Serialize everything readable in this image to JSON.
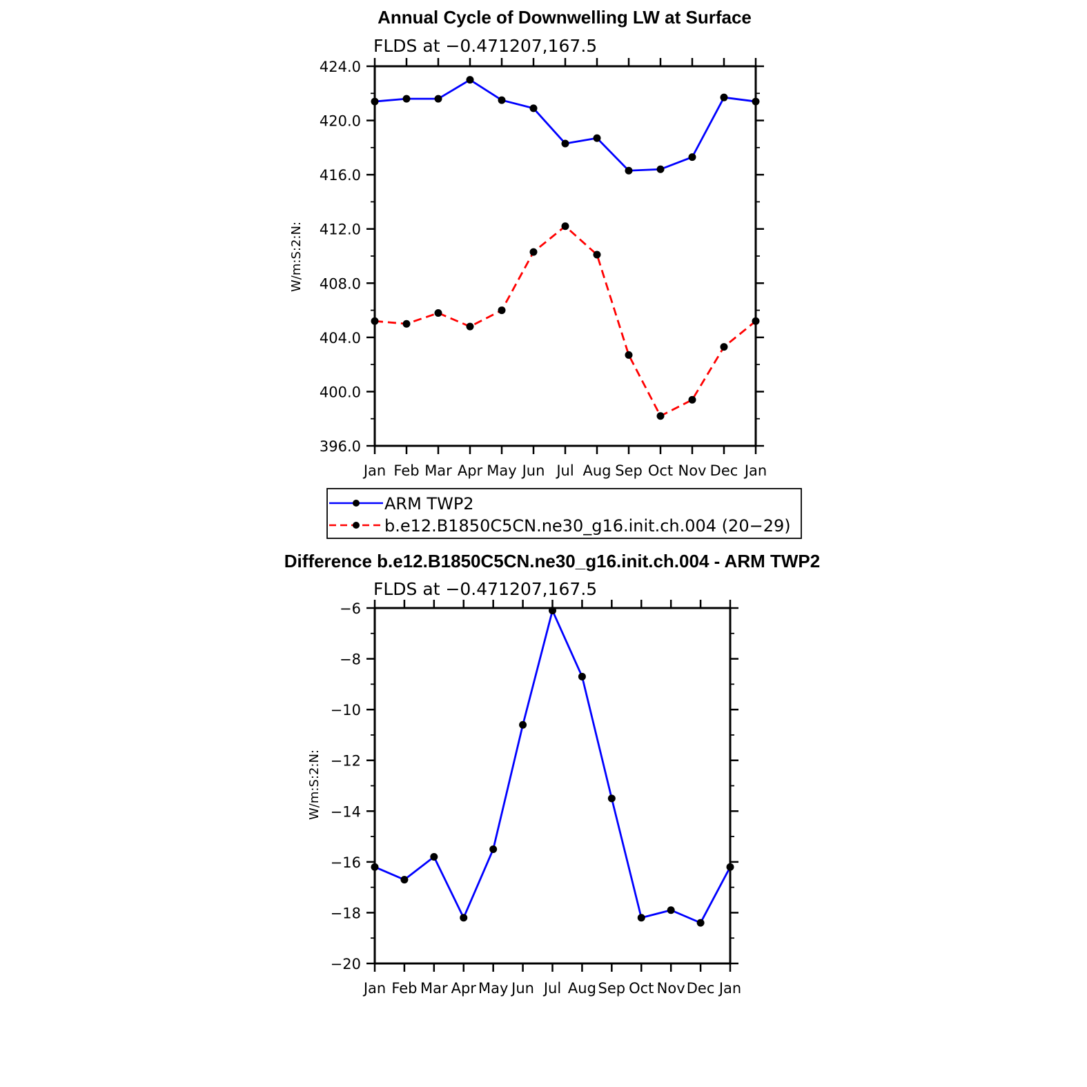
{
  "chart_data": [
    {
      "type": "line",
      "title": "Annual Cycle of Downwelling LW at Surface",
      "subtitle": "FLDS at −0.471207,167.5",
      "ylabel": "W/m:S:2:N:",
      "xlabel": "",
      "categories": [
        "Jan",
        "Feb",
        "Mar",
        "Apr",
        "May",
        "Jun",
        "Jul",
        "Aug",
        "Sep",
        "Oct",
        "Nov",
        "Dec",
        "Jan"
      ],
      "yticks": [
        "396.0",
        "400.0",
        "404.0",
        "408.0",
        "412.0",
        "416.0",
        "420.0",
        "424.0"
      ],
      "ylim": [
        396,
        424
      ],
      "ytick_values": [
        396,
        400,
        404,
        408,
        412,
        416,
        420,
        424
      ],
      "ymin_step": 2,
      "legend_position": "bottom",
      "series": [
        {
          "name": "ARM TWP2",
          "color": "#0000ff",
          "style": "solid",
          "values": [
            421.4,
            421.6,
            421.6,
            423.0,
            421.5,
            420.9,
            418.3,
            418.7,
            416.3,
            416.4,
            417.3,
            421.7,
            421.4
          ]
        },
        {
          "name": "b.e12.B1850C5CN.ne30_g16.init.ch.004 (20−29)",
          "color": "#ff0000",
          "style": "dashed",
          "values": [
            405.2,
            405.0,
            405.8,
            404.8,
            406.0,
            410.3,
            412.2,
            410.1,
            402.7,
            398.2,
            399.4,
            403.3,
            405.2
          ]
        }
      ]
    },
    {
      "type": "line",
      "title": "Difference b.e12.B1850C5CN.ne30_g16.init.ch.004 - ARM TWP2",
      "subtitle": "FLDS at −0.471207,167.5",
      "ylabel": "W/m:S:2:N:",
      "xlabel": "",
      "categories": [
        "Jan",
        "Feb",
        "Mar",
        "Apr",
        "May",
        "Jun",
        "Jul",
        "Aug",
        "Sep",
        "Oct",
        "Nov",
        "Dec",
        "Jan"
      ],
      "yticks": [
        "−20",
        "−18",
        "−16",
        "−14",
        "−12",
        "−10",
        "−8",
        "−6"
      ],
      "ylim": [
        -20,
        -6
      ],
      "ytick_values": [
        -20,
        -18,
        -16,
        -14,
        -12,
        -10,
        -8,
        -6
      ],
      "ymin_step": 1,
      "series": [
        {
          "color": "#0000ff",
          "style": "solid",
          "values": [
            -16.2,
            -16.7,
            -15.8,
            -18.2,
            -15.5,
            -10.6,
            -6.1,
            -8.7,
            -13.5,
            -18.2,
            -17.9,
            -18.4,
            -16.2
          ]
        }
      ]
    }
  ]
}
